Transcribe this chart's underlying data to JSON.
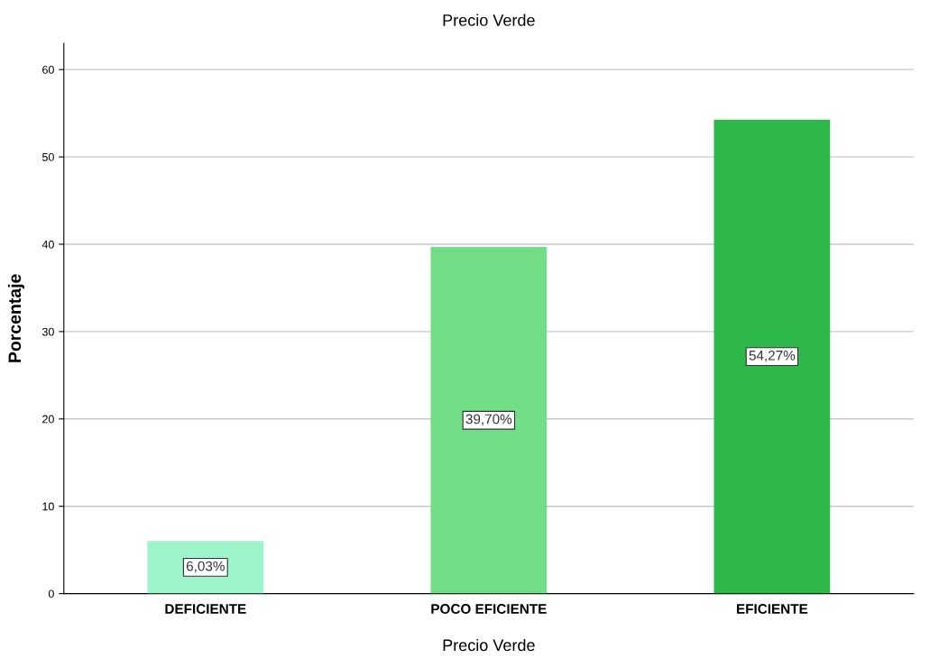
{
  "chart_data": {
    "type": "bar",
    "title": "Precio Verde",
    "xlabel": "Precio Verde",
    "ylabel": "Porcentaje",
    "categories": [
      "DEFICIENTE",
      "POCO EFICIENTE",
      "EFICIENTE"
    ],
    "values": [
      6.03,
      39.7,
      54.27
    ],
    "value_labels": [
      "6,03%",
      "39,70%",
      "54,27%"
    ],
    "colors": [
      "#9ef5cb",
      "#72dc87",
      "#2eb84a"
    ],
    "ylim": [
      0,
      63
    ],
    "yticks": [
      0,
      10,
      20,
      30,
      40,
      50,
      60
    ],
    "grid": "y"
  }
}
